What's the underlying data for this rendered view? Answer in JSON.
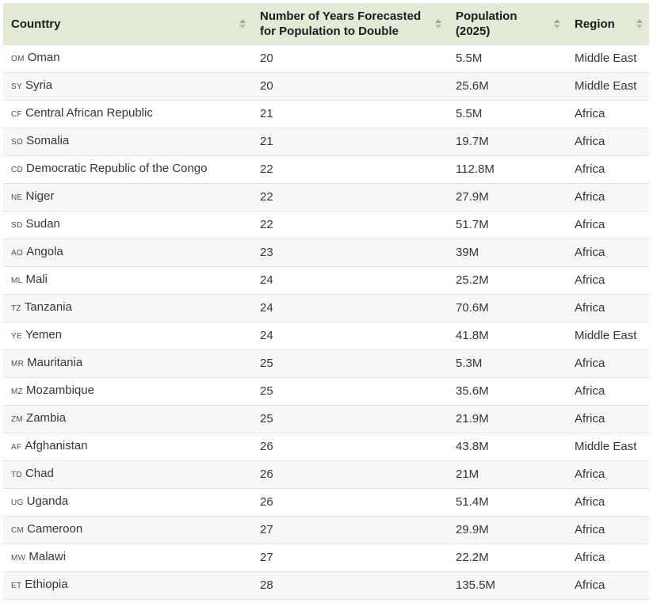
{
  "colors": {
    "header_bg": "#e2e9d6",
    "row_alt_bg": "#f7f7f7",
    "row_border": "#e2e2e2",
    "header_text": "#1c1c1c",
    "body_text": "#363636",
    "sort_icon": "#9fa79a"
  },
  "table": {
    "columns": [
      {
        "label": "Counttry"
      },
      {
        "label": "Number of Years Forecasted for Population to Double"
      },
      {
        "label": "Population (2025)"
      },
      {
        "label": "Region"
      }
    ],
    "rows": [
      {
        "code": "OM",
        "country": "Oman",
        "years": "20",
        "population": "5.5M",
        "region": "Middle East"
      },
      {
        "code": "SY",
        "country": "Syria",
        "years": "20",
        "population": "25.6M",
        "region": "Middle East"
      },
      {
        "code": "CF",
        "country": "Central African Republic",
        "years": "21",
        "population": "5.5M",
        "region": "Africa"
      },
      {
        "code": "SO",
        "country": "Somalia",
        "years": "21",
        "population": "19.7M",
        "region": "Africa"
      },
      {
        "code": "CD",
        "country": "Democratic Republic of the Congo",
        "years": "22",
        "population": "112.8M",
        "region": "Africa"
      },
      {
        "code": "NE",
        "country": "Niger",
        "years": "22",
        "population": "27.9M",
        "region": "Africa"
      },
      {
        "code": "SD",
        "country": "Sudan",
        "years": "22",
        "population": "51.7M",
        "region": "Africa"
      },
      {
        "code": "AO",
        "country": "Angola",
        "years": "23",
        "population": "39M",
        "region": "Africa"
      },
      {
        "code": "ML",
        "country": "Mali",
        "years": "24",
        "population": "25.2M",
        "region": "Africa"
      },
      {
        "code": "TZ",
        "country": "Tanzania",
        "years": "24",
        "population": "70.6M",
        "region": "Africa"
      },
      {
        "code": "YE",
        "country": "Yemen",
        "years": "24",
        "population": "41.8M",
        "region": "Middle East"
      },
      {
        "code": "MR",
        "country": "Mauritania",
        "years": "25",
        "population": "5.3M",
        "region": "Africa"
      },
      {
        "code": "MZ",
        "country": "Mozambique",
        "years": "25",
        "population": "35.6M",
        "region": "Africa"
      },
      {
        "code": "ZM",
        "country": "Zambia",
        "years": "25",
        "population": "21.9M",
        "region": "Africa"
      },
      {
        "code": "AF",
        "country": "Afghanistan",
        "years": "26",
        "population": "43.8M",
        "region": "Middle East"
      },
      {
        "code": "TD",
        "country": "Chad",
        "years": "26",
        "population": "21M",
        "region": "Africa"
      },
      {
        "code": "UG",
        "country": "Uganda",
        "years": "26",
        "population": "51.4M",
        "region": "Africa"
      },
      {
        "code": "CM",
        "country": "Cameroon",
        "years": "27",
        "population": "29.9M",
        "region": "Africa"
      },
      {
        "code": "MW",
        "country": "Malawi",
        "years": "27",
        "population": "22.2M",
        "region": "Africa"
      },
      {
        "code": "ET",
        "country": "Ethiopia",
        "years": "28",
        "population": "135.5M",
        "region": "Africa"
      }
    ]
  }
}
